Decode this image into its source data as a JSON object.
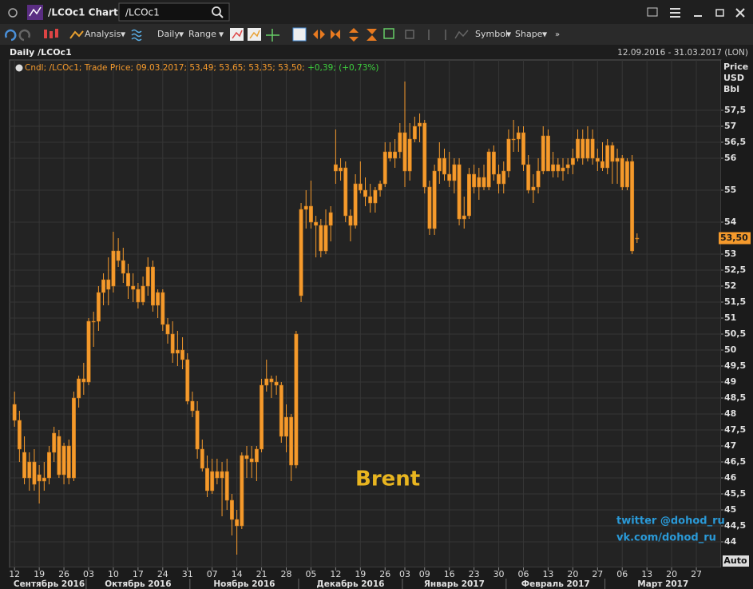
{
  "window": {
    "title": "/LCOc1 Chart",
    "search": "/LCOc1"
  },
  "toolbar": {
    "analysis": "Analysis",
    "interval": "Daily",
    "range": "Range",
    "symbol": "Symbol",
    "shape": "Shape"
  },
  "chart_header": {
    "left": "Daily /LCOc1",
    "right": "12.09.2016 - 31.03.2017 (LON)"
  },
  "legend": {
    "name": "Cndl; /LCOc1; Trade Price; 09.03.2017; 53,49; 53,65; 53,35; 53,50;",
    "change": "+0,39; (+0,73%)"
  },
  "annotations": {
    "brent": "Brent",
    "twitter": "twitter @dohod_ru",
    "vk": "vk.com/dohod_ru",
    "auto": "Auto"
  },
  "chart_data": {
    "type": "candlestick",
    "y_label": [
      "Price",
      "USD",
      "Bbl"
    ],
    "color": "#f59a2c",
    "grid": true,
    "open": [
      48.3,
      47.8,
      46.8,
      46.0,
      46.5,
      45.9,
      46.0,
      46.0,
      46.8,
      47.3,
      46.1,
      47.0,
      46.0,
      48.5,
      49.1,
      49.0,
      50.9,
      50.9,
      51.8,
      52.2,
      52.0,
      53.1,
      52.8,
      52.4,
      52.0,
      51.9,
      51.5,
      52.0,
      52.6,
      51.4,
      51.8,
      50.8,
      50.5,
      49.9,
      50.0,
      49.7,
      48.4,
      48.1,
      46.9,
      46.3,
      45.6,
      46.2,
      46.0,
      46.2,
      45.3,
      44.7,
      44.5,
      46.7,
      46.6,
      46.5,
      46.9,
      48.9,
      49.1,
      49.0,
      48.9,
      47.3,
      47.9,
      46.4,
      51.7,
      54.4,
      54.5,
      54.0,
      53.9,
      53.1,
      53.9,
      55.8,
      55.6,
      55.7,
      54.2,
      53.9,
      55.2,
      55.0,
      54.8,
      54.6,
      55.0,
      55.2,
      56.2,
      56.0,
      56.2,
      56.8,
      55.6,
      56.6,
      57.0,
      57.1,
      55.1,
      53.8,
      55.6,
      56.0,
      55.5,
      55.3,
      55.8,
      54.1,
      54.2,
      55.5,
      55.1,
      55.4,
      55.1,
      56.2,
      55.5,
      55.2,
      55.6,
      56.6,
      56.6,
      56.8,
      55.8,
      55.0,
      55.1,
      55.6,
      56.7,
      55.6,
      55.8,
      55.6,
      55.7,
      55.8,
      56.0,
      56.6,
      56.0,
      56.6,
      56.0,
      55.9,
      55.7,
      56.4,
      55.9,
      56.0,
      55.1,
      55.9,
      53.49
    ],
    "high": [
      48.7,
      48.1,
      47.3,
      46.8,
      46.9,
      46.4,
      46.5,
      47.0,
      47.6,
      47.5,
      47.1,
      47.2,
      48.7,
      49.2,
      49.6,
      51.0,
      51.2,
      52.0,
      52.4,
      52.9,
      53.7,
      53.5,
      53.2,
      52.7,
      52.4,
      52.1,
      52.3,
      52.9,
      52.8,
      51.9,
      51.9,
      51.0,
      50.9,
      50.6,
      50.4,
      49.9,
      48.7,
      48.4,
      47.2,
      46.7,
      46.6,
      46.6,
      46.5,
      46.6,
      45.5,
      45.0,
      46.8,
      47.0,
      47.0,
      47.0,
      49.1,
      49.7,
      49.2,
      49.2,
      49.0,
      48.3,
      48.0,
      50.6,
      54.6,
      55.0,
      55.3,
      54.2,
      54.1,
      54.4,
      54.5,
      56.9,
      56.0,
      55.9,
      54.4,
      55.5,
      55.9,
      55.4,
      55.2,
      55.1,
      55.3,
      56.5,
      56.5,
      56.6,
      57.1,
      58.4,
      57.1,
      57.3,
      57.4,
      57.2,
      55.3,
      55.8,
      56.5,
      56.3,
      56.2,
      56.0,
      56.0,
      54.8,
      55.7,
      55.8,
      55.7,
      55.8,
      56.3,
      56.4,
      55.8,
      55.9,
      56.9,
      57.2,
      57.0,
      57.0,
      56.1,
      55.5,
      56.0,
      57.0,
      56.9,
      56.2,
      56.0,
      56.0,
      56.0,
      56.3,
      56.9,
      56.9,
      57.0,
      56.9,
      56.3,
      56.5,
      56.6,
      56.5,
      56.3,
      56.1,
      56.0,
      56.1,
      53.65
    ],
    "low": [
      47.6,
      46.5,
      45.8,
      45.6,
      45.6,
      45.2,
      45.6,
      45.8,
      46.5,
      46.0,
      45.8,
      45.8,
      45.9,
      48.2,
      48.6,
      48.9,
      50.1,
      50.6,
      51.4,
      51.4,
      51.8,
      52.6,
      52.1,
      51.6,
      51.5,
      51.3,
      51.4,
      51.7,
      51.2,
      51.0,
      50.6,
      50.2,
      49.6,
      49.5,
      49.4,
      48.3,
      47.9,
      46.6,
      46.2,
      45.4,
      45.5,
      45.8,
      44.8,
      45.0,
      44.2,
      43.6,
      44.4,
      46.0,
      46.0,
      45.9,
      46.8,
      48.7,
      48.5,
      48.6,
      47.1,
      46.8,
      45.9,
      46.3,
      51.5,
      53.8,
      53.8,
      52.9,
      52.9,
      53.0,
      53.4,
      55.2,
      55.3,
      54.0,
      53.4,
      53.8,
      54.9,
      54.5,
      54.3,
      54.3,
      54.8,
      55.1,
      55.9,
      55.7,
      56.0,
      55.1,
      55.3,
      56.5,
      56.5,
      54.9,
      53.6,
      53.6,
      55.2,
      55.3,
      55.1,
      54.9,
      53.9,
      53.8,
      54.1,
      54.9,
      54.7,
      55.0,
      55.0,
      55.3,
      54.9,
      54.9,
      55.4,
      56.2,
      56.2,
      55.6,
      54.9,
      54.6,
      54.9,
      55.5,
      55.6,
      55.4,
      55.4,
      55.3,
      55.5,
      55.5,
      55.9,
      55.8,
      55.9,
      55.8,
      55.6,
      55.6,
      55.5,
      55.2,
      55.2,
      55.0,
      55.0,
      53.0,
      53.35
    ],
    "close": [
      47.8,
      46.9,
      46.0,
      46.5,
      45.8,
      46.1,
      45.9,
      46.8,
      47.4,
      46.1,
      47.0,
      46.0,
      48.5,
      49.1,
      49.0,
      50.9,
      50.9,
      51.8,
      52.2,
      51.9,
      53.1,
      52.8,
      52.4,
      52.0,
      51.9,
      51.5,
      52.0,
      52.6,
      51.4,
      51.8,
      50.8,
      50.5,
      49.9,
      50.0,
      49.7,
      48.4,
      48.1,
      46.9,
      46.3,
      45.6,
      46.2,
      46.0,
      46.2,
      45.3,
      44.7,
      44.5,
      46.7,
      46.6,
      46.5,
      46.9,
      48.9,
      49.1,
      49.0,
      48.9,
      47.3,
      47.9,
      46.4,
      50.5,
      54.4,
      54.5,
      54.0,
      53.9,
      53.1,
      53.9,
      54.3,
      55.6,
      55.7,
      54.2,
      53.9,
      55.2,
      55.0,
      54.8,
      54.6,
      55.0,
      55.2,
      56.2,
      56.0,
      56.2,
      56.8,
      55.6,
      56.6,
      57.0,
      57.1,
      55.1,
      53.8,
      55.6,
      56.0,
      55.5,
      55.3,
      55.8,
      54.1,
      54.2,
      55.5,
      55.1,
      55.4,
      55.1,
      56.2,
      55.5,
      55.2,
      55.6,
      56.6,
      56.6,
      56.8,
      55.8,
      55.0,
      55.1,
      55.6,
      56.7,
      55.6,
      55.8,
      55.6,
      55.7,
      55.8,
      56.0,
      56.6,
      56.0,
      56.6,
      56.0,
      55.9,
      55.7,
      56.4,
      55.9,
      56.0,
      55.1,
      55.9,
      53.1,
      53.5
    ],
    "last_value_label": "53,50",
    "ylim": [
      43.5,
      58.5
    ],
    "yticks": [
      44,
      {
        "value": 44.5,
        "label": "44,5"
      },
      45,
      {
        "value": 45.5,
        "label": "45,5"
      },
      46,
      {
        "value": 46.5,
        "label": "46,5"
      },
      47,
      {
        "value": 47.5,
        "label": "47,5"
      },
      48,
      {
        "value": 48.5,
        "label": "48,5"
      },
      49,
      {
        "value": 49.5,
        "label": "49,5"
      },
      50,
      {
        "value": 50.5,
        "label": "50,5"
      },
      51,
      {
        "value": 51.5,
        "label": "51,5"
      },
      52,
      {
        "value": 52.5,
        "label": "52,5"
      },
      53,
      54,
      55,
      56,
      {
        "value": 56.5,
        "label": "56,5"
      },
      57,
      {
        "value": 57.5,
        "label": "57,5"
      }
    ],
    "xlim": [
      -1,
      143
    ],
    "xticks": [
      {
        "value": 0,
        "label": "12"
      },
      {
        "value": 5,
        "label": "19"
      },
      {
        "value": 10,
        "label": "26"
      },
      {
        "value": 15,
        "label": "03"
      },
      {
        "value": 20,
        "label": "10"
      },
      {
        "value": 25,
        "label": "17"
      },
      {
        "value": 30,
        "label": "24"
      },
      {
        "value": 35,
        "label": "31"
      },
      {
        "value": 40,
        "label": "07"
      },
      {
        "value": 45,
        "label": "14"
      },
      {
        "value": 50,
        "label": "21"
      },
      {
        "value": 55,
        "label": "28"
      },
      {
        "value": 60,
        "label": "05"
      },
      {
        "value": 65,
        "label": "12"
      },
      {
        "value": 70,
        "label": "19"
      },
      {
        "value": 75,
        "label": "26"
      },
      {
        "value": 79,
        "label": "03"
      },
      {
        "value": 83,
        "label": "09"
      },
      {
        "value": 88,
        "label": "16"
      },
      {
        "value": 93,
        "label": "23"
      },
      {
        "value": 98,
        "label": "30"
      },
      {
        "value": 103,
        "label": "06"
      },
      {
        "value": 108,
        "label": "13"
      },
      {
        "value": 113,
        "label": "20"
      },
      {
        "value": 118,
        "label": "27"
      },
      {
        "value": 123,
        "label": "06"
      },
      {
        "value": 128,
        "label": "13"
      },
      {
        "value": 133,
        "label": "20"
      },
      {
        "value": 138,
        "label": "27"
      }
    ],
    "months": [
      {
        "value": -1,
        "label": "Сентябрь 2016"
      },
      {
        "value": 14.5,
        "label": "Октябрь 2016"
      },
      {
        "value": 35.5,
        "label": "Ноябрь 2016"
      },
      {
        "value": 57.5,
        "label": "Декабрь 2016"
      },
      {
        "value": 78.5,
        "label": "Январь 2017"
      },
      {
        "value": 99.5,
        "label": "Февраль 2017"
      },
      {
        "value": 119.5,
        "label": "Март 2017"
      }
    ]
  }
}
